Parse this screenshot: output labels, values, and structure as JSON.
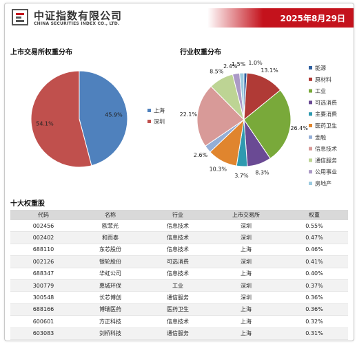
{
  "header": {
    "brand_cn": "中证指数有限公司",
    "brand_en": "CHINA SECURITIES INDEX CO., LTD.",
    "date": "2025年8月29日",
    "accent_color": "#c4121c"
  },
  "sections": {
    "exchange_title": "上市交易所权重分布",
    "industry_title": "行业权重分布",
    "top10_title": "十大权重股"
  },
  "chart_data": [
    {
      "type": "pie",
      "title": "上市交易所权重分布",
      "legend_position": "right",
      "labels": [
        "上海",
        "深圳"
      ],
      "values": [
        45.9,
        54.1
      ],
      "value_labels": [
        "45.9%",
        "54.1%"
      ],
      "colors": [
        "#4f81bd",
        "#c0504d"
      ]
    },
    {
      "type": "pie",
      "title": "行业权重分布",
      "legend_position": "right",
      "labels": [
        "能源",
        "原材料",
        "工业",
        "可选消费",
        "主要消费",
        "医药卫生",
        "金融",
        "信息技术",
        "通信服务",
        "公用事业",
        "房地产"
      ],
      "values": [
        1.0,
        13.1,
        26.4,
        8.3,
        3.7,
        10.3,
        2.6,
        22.1,
        8.5,
        2.4,
        1.5
      ],
      "value_labels": [
        "1.0%",
        "13.1%",
        "26.4%",
        "8.3%",
        "3.7%",
        "10.3%",
        "2.6%",
        "22.1%",
        "8.5%",
        "2.4%",
        "1.5%"
      ],
      "colors": [
        "#2e5f9e",
        "#b03a36",
        "#79a93a",
        "#6a4a94",
        "#2f9ab0",
        "#e0852e",
        "#94aed6",
        "#d89a98",
        "#bdd494",
        "#ab9ac6",
        "#9ccbe0"
      ]
    }
  ],
  "top10": {
    "columns": [
      "代码",
      "名称",
      "行业",
      "上市交易所",
      "权重"
    ],
    "rows": [
      [
        "002456",
        "欧菲光",
        "信息技术",
        "深圳",
        "0.55%"
      ],
      [
        "002402",
        "和而泰",
        "信息技术",
        "深圳",
        "0.47%"
      ],
      [
        "688110",
        "东芯股份",
        "信息技术",
        "上海",
        "0.46%"
      ],
      [
        "002126",
        "银轮股份",
        "可选消费",
        "深圳",
        "0.41%"
      ],
      [
        "688347",
        "华虹公司",
        "信息技术",
        "上海",
        "0.40%"
      ],
      [
        "300779",
        "惠城环保",
        "工业",
        "深圳",
        "0.37%"
      ],
      [
        "300548",
        "长芯博创",
        "通信服务",
        "深圳",
        "0.36%"
      ],
      [
        "688166",
        "博瑞医药",
        "医药卫生",
        "上海",
        "0.36%"
      ],
      [
        "600601",
        "方正科技",
        "信息技术",
        "上海",
        "0.32%"
      ],
      [
        "603083",
        "剑桥科技",
        "通信服务",
        "上海",
        "0.31%"
      ]
    ]
  }
}
